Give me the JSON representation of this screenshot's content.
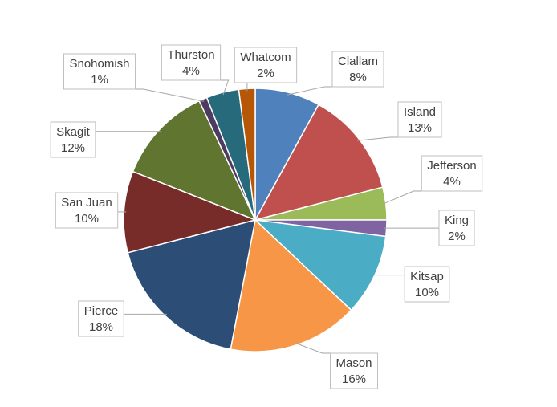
{
  "chart_data": {
    "type": "pie",
    "title": "",
    "slices": [
      {
        "label": "Clallam",
        "value": 8,
        "display": "8%",
        "color": "#4F81BD"
      },
      {
        "label": "Island",
        "value": 13,
        "display": "13%",
        "color": "#C0504D"
      },
      {
        "label": "Jefferson",
        "value": 4,
        "display": "4%",
        "color": "#9BBB59"
      },
      {
        "label": "King",
        "value": 2,
        "display": "2%",
        "color": "#8064A2"
      },
      {
        "label": "Kitsap",
        "value": 10,
        "display": "10%",
        "color": "#4BACC6"
      },
      {
        "label": "Mason",
        "value": 16,
        "display": "16%",
        "color": "#F79646"
      },
      {
        "label": "Pierce",
        "value": 18,
        "display": "18%",
        "color": "#2C4D75"
      },
      {
        "label": "San Juan",
        "value": 10,
        "display": "10%",
        "color": "#772C2A"
      },
      {
        "label": "Skagit",
        "value": 12,
        "display": "12%",
        "color": "#5F7530"
      },
      {
        "label": "Snohomish",
        "value": 1,
        "display": "1%",
        "color": "#4D3B62"
      },
      {
        "label": "Thurston",
        "value": 4,
        "display": "4%",
        "color": "#276A7C"
      },
      {
        "label": "Whatcom",
        "value": 2,
        "display": "2%",
        "color": "#B65708"
      }
    ],
    "legend": "none",
    "data_labels": "callouts"
  }
}
